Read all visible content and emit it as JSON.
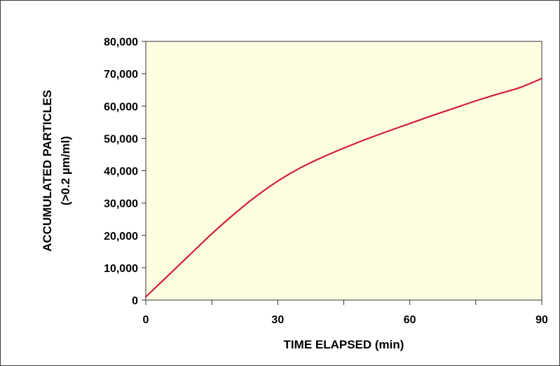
{
  "chart_data": {
    "type": "line",
    "title": "",
    "xlabel": "TIME ELAPSED (min)",
    "ylabel": [
      "ACCUMULATED PARTICLES",
      "(>0.2 µm/ml)"
    ],
    "xlim": [
      0,
      90
    ],
    "ylim": [
      0,
      80000
    ],
    "x_ticks": [
      0,
      15,
      30,
      45,
      60,
      75,
      90
    ],
    "x_tick_labels": [
      "0",
      "",
      "30",
      "",
      "60",
      "",
      "90"
    ],
    "y_ticks": [
      0,
      10000,
      20000,
      30000,
      40000,
      50000,
      60000,
      70000,
      80000
    ],
    "y_tick_labels": [
      "0",
      "10,000",
      "20,000",
      "30,000",
      "40,000",
      "50,000",
      "60,000",
      "70,000",
      "80,000"
    ],
    "grid": false,
    "legend": "none",
    "plot_background": "#fdfde2",
    "series": [
      {
        "color": "#d11f3a",
        "x": [
          0,
          5,
          10,
          15,
          20,
          25,
          30,
          35,
          40,
          45,
          50,
          55,
          60,
          65,
          70,
          75,
          80,
          85,
          90
        ],
        "y": [
          1000,
          7500,
          14000,
          20500,
          26500,
          32000,
          36800,
          40800,
          44100,
          47000,
          49700,
          52200,
          54600,
          57000,
          59300,
          61600,
          63700,
          65700,
          68500
        ]
      }
    ]
  }
}
